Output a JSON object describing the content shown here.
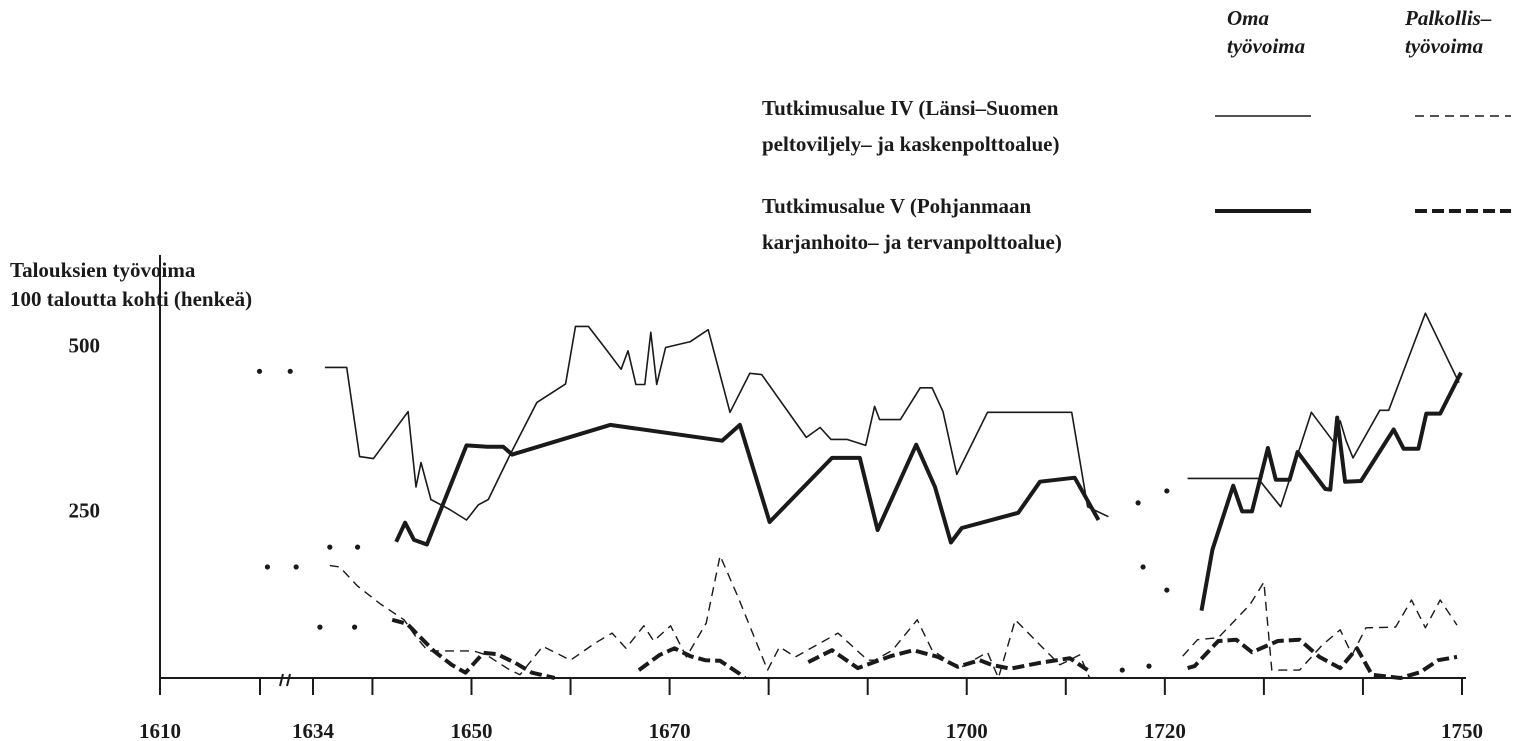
{
  "chart_data": {
    "type": "line",
    "y_axis_label": [
      "Talouksien työvoima",
      "100 taloutta kohti (henkeä)"
    ],
    "legend": {
      "columns": [
        [
          "Oma",
          "työvoima"
        ],
        [
          "Palkollis–",
          "työvoima"
        ]
      ],
      "rows": [
        [
          "Tutkimusalue IV (Länsi–Suomen",
          "peltoviljely– ja kaskenpolttoalue)"
        ],
        [
          "Tutkimusalue V (Pohjanmaan",
          "karjanhoito– ja tervanpolttoalue)"
        ]
      ]
    },
    "xlim": [
      1610,
      1750
    ],
    "xticks": [
      1610,
      1634,
      1650,
      1670,
      1700,
      1720,
      1750
    ],
    "xminorticks": [
      1640,
      1660,
      1680,
      1690,
      1710,
      1730,
      1740
    ],
    "axis_break": true,
    "ylim": [
      0,
      640
    ],
    "yticks": [
      250,
      500
    ],
    "color": "#1a1a1a",
    "series": [
      {
        "row": 0,
        "column": 0,
        "width": 1.6,
        "dash": false,
        "x": [
          1635.2,
          1637.4,
          1638.7,
          1640.1,
          1643.6,
          1644.4,
          1644.9,
          1645.9,
          1647.8,
          1649.5,
          1650.7,
          1651.7,
          1653.9,
          1656.6,
          1659.5,
          1660.5,
          1661.8,
          1663.6,
          1665.1,
          1665.8,
          1666.6,
          1667.5,
          1668.1,
          1668.7,
          1669.6,
          1672.1,
          1673.9,
          1676.1,
          1678.1,
          1679.3,
          1683.8,
          1685.2,
          1686.3,
          1687.9,
          1689.8,
          1690.7,
          1691.2,
          1693.3,
          1695.3,
          1696.5,
          1697.6,
          1699.0,
          1702.1,
          1710.6,
          1712.2,
          1714.3,
          null,
          1722.3,
          1729.4,
          1731.7,
          1734.8,
          1737.1,
          1737.7,
          1738.3,
          1739.0,
          1741.7,
          1742.6,
          1746.3,
          1749.7
        ],
        "values": [
          470,
          470,
          335,
          332,
          403,
          289,
          326,
          270,
          255,
          239,
          262,
          270,
          338,
          417,
          445,
          532,
          532,
          497,
          467,
          495,
          444,
          444,
          523,
          444,
          500,
          509,
          527,
          402,
          461,
          459,
          364,
          379,
          361,
          361,
          352,
          411,
          391,
          391,
          439,
          439,
          403,
          308,
          402,
          402,
          259,
          244,
          null,
          302,
          302,
          259,
          402,
          356,
          389,
          359,
          333,
          405,
          405,
          552,
          447
        ]
      },
      {
        "row": 1,
        "column": 0,
        "width": 4,
        "dash": false,
        "x": [
          1642.4,
          1643.3,
          1644.2,
          1645.5,
          1649.5,
          1651.6,
          1653.2,
          1654.1,
          1664.0,
          1675.3,
          1677.1,
          1680.1,
          1686.4,
          1689.2,
          1691.0,
          1694.9,
          1696.8,
          1698.4,
          1699.5,
          1705.2,
          1707.4,
          1710.9,
          1713.3,
          null,
          1723.7,
          1724.8,
          1726.9,
          1727.8,
          1728.8,
          1730.4,
          1731.2,
          1732.6,
          1733.4,
          1736.2,
          1736.7,
          1737.4,
          1738.2,
          1739.8,
          1743.1,
          1744.1,
          1745.6,
          1746.4,
          1747.8,
          1749.9
        ],
        "values": [
          206,
          235,
          209,
          202,
          352,
          350,
          350,
          338,
          383,
          359,
          383,
          236,
          333,
          333,
          224,
          353,
          289,
          205,
          227,
          250,
          297,
          303,
          239,
          null,
          102,
          194,
          291,
          252,
          252,
          348,
          300,
          300,
          342,
          286,
          285,
          394,
          297,
          298,
          376,
          347,
          347,
          400,
          400,
          462
        ]
      },
      {
        "row": 0,
        "column": 1,
        "width": 1.4,
        "dash": true,
        "x": [
          1635.7,
          1636.7,
          1638.5,
          1640.8,
          1643.2,
          1644.4,
          1645.6,
          1650.2,
          1651.5,
          1653.9,
          1654.9,
          1657.2,
          1660.0,
          1662.5,
          1664.2,
          1665.6,
          1667.4,
          1668.4,
          1670.1,
          1671.7,
          1673.7,
          1675.1,
          1676.9,
          1679.9,
          1681.1,
          1682.7,
          1687.0,
          1690.0,
          1690.7,
          1692.5,
          1695.0,
          1696.5,
          1699.3,
          1702.1,
          1703.2,
          1704.9,
          1707.4,
          1709.4,
          1711.4,
          1712.4,
          null,
          1721.8,
          1723.3,
          1725.4,
          1728.6,
          1730.0,
          1730.8,
          1733.6,
          1735.9,
          1737.7,
          1738.9,
          1740.3,
          1743.3,
          1744.9,
          1746.3,
          1747.8,
          1749.5
        ],
        "values": [
          170,
          168,
          139,
          112,
          88,
          62,
          41,
          41,
          35,
          12,
          5,
          48,
          27,
          53,
          68,
          45,
          79,
          56,
          79,
          32,
          83,
          185,
          123,
          12,
          47,
          32,
          68,
          27,
          27,
          42,
          88,
          42,
          15,
          39,
          0,
          88,
          50,
          20,
          35,
          0,
          null,
          33,
          58,
          61,
          111,
          145,
          12,
          12,
          50,
          73,
          35,
          76,
          77,
          118,
          76,
          118,
          80
        ]
      },
      {
        "row": 1,
        "column": 1,
        "width": 4,
        "dash": true,
        "x": [
          1642.0,
          1643.5,
          1646.2,
          1648.0,
          1649.4,
          1651.2,
          1652.6,
          1654.4,
          1656.1,
          1658.4,
          null,
          1666.9,
          1669.0,
          1670.5,
          1672.1,
          1673.6,
          1675.1,
          1677.1,
          1677.6,
          null,
          1684.0,
          1686.4,
          1689.0,
          1692.3,
          1694.6,
          1697.1,
          1699.1,
          1701.3,
          1702.5,
          1704.4,
          1707.4,
          1710.4,
          1712.2,
          null,
          1722.3,
          1723.0,
          1725.4,
          1727.2,
          1728.8,
          1731.4,
          1733.6,
          1735.6,
          1737.7,
          1739.4,
          1740.9,
          1743.8,
          1745.8,
          1747.6,
          1749.5
        ],
        "values": [
          88,
          82,
          41,
          20,
          8,
          38,
          36,
          23,
          8,
          0,
          null,
          12,
          35,
          45,
          33,
          27,
          26,
          6,
          0,
          null,
          24,
          42,
          15,
          33,
          42,
          32,
          17,
          27,
          20,
          14,
          23,
          30,
          12,
          null,
          15,
          18,
          56,
          58,
          39,
          56,
          58,
          32,
          15,
          45,
          5,
          0,
          9,
          27,
          32
        ]
      }
    ],
    "dots": {
      "x": [
        1628.6,
        1631.7,
        1635.7,
        1638.5,
        1629.4,
        1632.3,
        1634.7,
        1638.2,
        1717.3,
        1720.2,
        1717.8,
        1720.2,
        1715.7,
        1718.4
      ],
      "y": [
        464,
        464,
        198,
        198,
        168,
        168,
        77,
        77,
        265,
        283,
        168,
        133,
        12,
        18
      ]
    }
  }
}
